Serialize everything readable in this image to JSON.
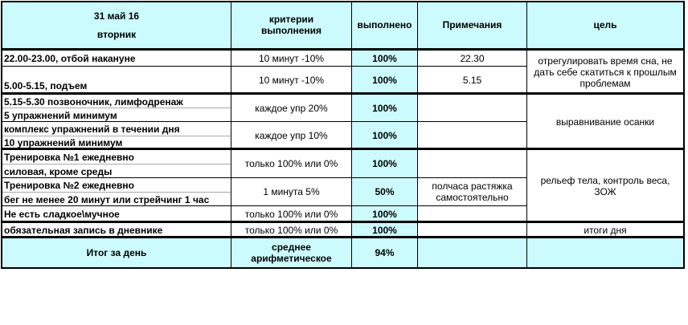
{
  "header": {
    "date": "31 май 16",
    "weekday": "вторник",
    "criteria": "критерии выполнения",
    "done": "выполнено",
    "notes": "Примечания",
    "goal": "цель"
  },
  "rows": [
    {
      "task": "22.00-23.00, отбой накануне",
      "criteria": "10 минут -10%",
      "done": "100%",
      "note": "22.30"
    },
    {
      "task": "5.00-5.15, подъем",
      "criteria": "10 минут -10%",
      "done": "100%",
      "note": "5.15"
    },
    {
      "task_line1": "5.15-5.30 позвоночник, лимфодренаж",
      "task_line2": "5 упражнений минимум",
      "criteria": "каждое упр  20%",
      "done": "100%",
      "note": ""
    },
    {
      "task_line1": "комплекс упражнений в течении дня",
      "task_line2": "10 упражнений минимум",
      "criteria": "каждое упр  10%",
      "done": "100%",
      "note": ""
    },
    {
      "task_line1": "Тренировка №1 ежедневно",
      "task_line2": "силовая, кроме среды",
      "criteria": "только 100% или 0%",
      "done": "100%",
      "note": ""
    },
    {
      "task_line1": "Тренировка №2 ежедневно",
      "task_line2": "бег не менее 20 минут или стрейчинг 1 час",
      "criteria": "1 минута 5%",
      "done": "50%",
      "note": "полчаса растяжка самостоятельно"
    },
    {
      "task": "Не есть сладкое\\мучное",
      "criteria": "только 100% или 0%",
      "done": "100%",
      "note": ""
    },
    {
      "task": "обязательная запись в дневнике",
      "criteria": "только 100% или 0%",
      "done": "100%",
      "note": ""
    }
  ],
  "goals": {
    "sleep": "отрегулировать время сна, не дать себе скатиться к прошлым проблемам",
    "posture": "выравнивание осанки",
    "body": "рельеф  тела, контроль веса, ЗОЖ",
    "diary": "итоги дня"
  },
  "total": {
    "label": "Итог за день",
    "criteria": "среднее арифметическое",
    "done": "94%"
  },
  "colors": {
    "header_bg": "#ccfbfd",
    "border": "#000000"
  }
}
